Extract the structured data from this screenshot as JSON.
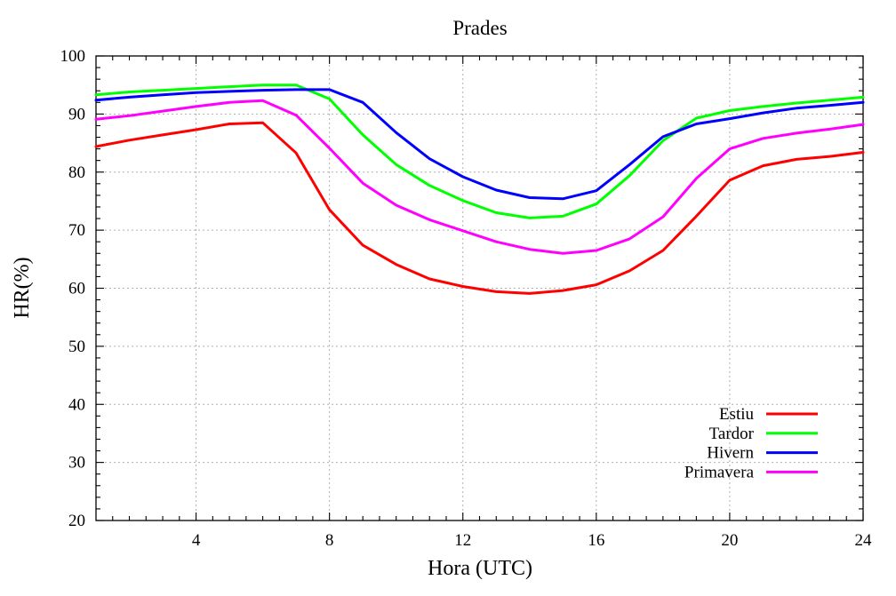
{
  "chart_data": {
    "type": "line",
    "title": "Prades",
    "xlabel": "Hora (UTC)",
    "ylabel": "HR(%)",
    "xlim": [
      1,
      24
    ],
    "ylim": [
      20,
      100
    ],
    "x_ticks": [
      4,
      8,
      12,
      16,
      20,
      24
    ],
    "y_ticks": [
      20,
      30,
      40,
      50,
      60,
      70,
      80,
      90,
      100
    ],
    "grid": true,
    "legend_position": "bottom-right",
    "x": [
      1,
      2,
      3,
      4,
      5,
      6,
      7,
      8,
      9,
      10,
      11,
      12,
      13,
      14,
      15,
      16,
      17,
      18,
      19,
      20,
      21,
      22,
      23,
      24
    ],
    "series": [
      {
        "name": "Estiu",
        "color": "#ff0000",
        "values": [
          84.4,
          85.5,
          86.4,
          87.3,
          88.3,
          88.5,
          83.3,
          73.5,
          67.4,
          64.1,
          61.6,
          60.3,
          59.4,
          59.1,
          59.6,
          60.6,
          63.0,
          66.5,
          72.4,
          78.6,
          81.1,
          82.2,
          82.7,
          83.4
        ]
      },
      {
        "name": "Tardor",
        "color": "#00ff00",
        "values": [
          93.3,
          93.8,
          94.1,
          94.4,
          94.7,
          95.0,
          95.0,
          92.6,
          86.4,
          81.3,
          77.7,
          75.1,
          73.0,
          72.1,
          72.4,
          74.5,
          79.4,
          85.4,
          89.3,
          90.6,
          91.3,
          91.9,
          92.4,
          92.9
        ]
      },
      {
        "name": "Hivern",
        "color": "#0000ff",
        "values": [
          92.4,
          92.9,
          93.3,
          93.7,
          93.9,
          94.1,
          94.2,
          94.2,
          92.0,
          86.8,
          82.3,
          79.2,
          76.9,
          75.6,
          75.4,
          76.8,
          81.3,
          86.1,
          88.3,
          89.2,
          90.2,
          91.0,
          91.5,
          92.0
        ]
      },
      {
        "name": "Primavera",
        "color": "#ff00ff",
        "values": [
          89.1,
          89.7,
          90.5,
          91.3,
          92.0,
          92.3,
          89.8,
          84.1,
          78.1,
          74.3,
          71.8,
          69.9,
          68.0,
          66.7,
          66.0,
          66.5,
          68.5,
          72.3,
          78.9,
          84.0,
          85.8,
          86.7,
          87.4,
          88.2
        ]
      }
    ]
  }
}
